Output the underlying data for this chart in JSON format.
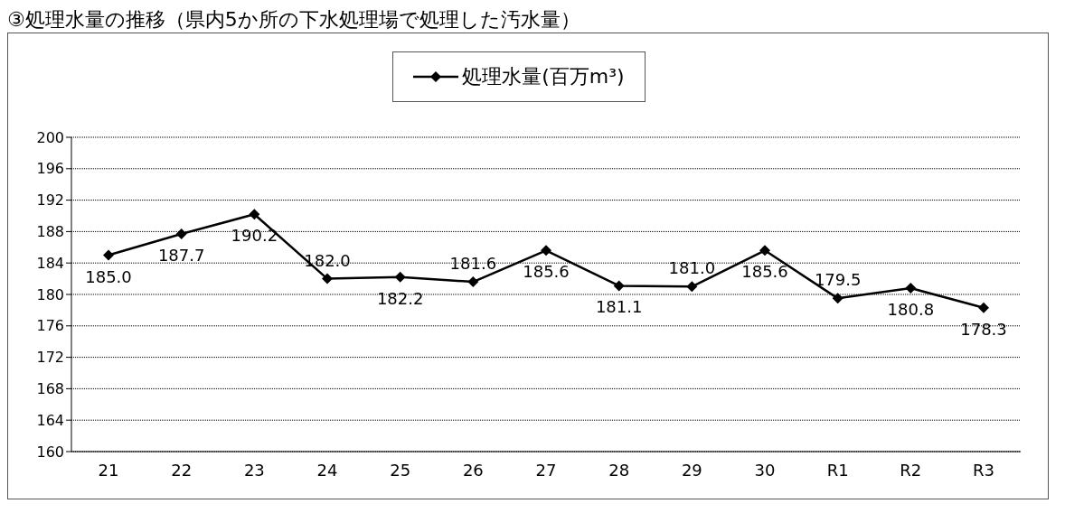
{
  "chart_data": {
    "type": "line",
    "title": "③処理水量の推移（県内5か所の下水処理場で処理した汚水量）",
    "categories": [
      "21",
      "22",
      "23",
      "24",
      "25",
      "26",
      "27",
      "28",
      "29",
      "30",
      "R1",
      "R2",
      "R3"
    ],
    "series": [
      {
        "name": "処理水量(百万m³)",
        "color": "#000000",
        "values": [
          185.0,
          187.7,
          190.2,
          182.0,
          182.2,
          181.6,
          185.6,
          181.1,
          181.0,
          185.6,
          179.5,
          180.8,
          178.3
        ],
        "value_labels": [
          "185.0",
          "187.7",
          "190.2",
          "182.0",
          "182.2",
          "181.6",
          "185.6",
          "181.1",
          "181.0",
          "185.6",
          "179.5",
          "180.8",
          "178.3"
        ]
      }
    ],
    "ylim": [
      160,
      200
    ],
    "yticks": [
      160,
      164,
      168,
      172,
      176,
      180,
      184,
      188,
      192,
      196,
      200
    ],
    "grid": "y",
    "legend": "top",
    "marker": "diamond",
    "line_style": "solid"
  }
}
